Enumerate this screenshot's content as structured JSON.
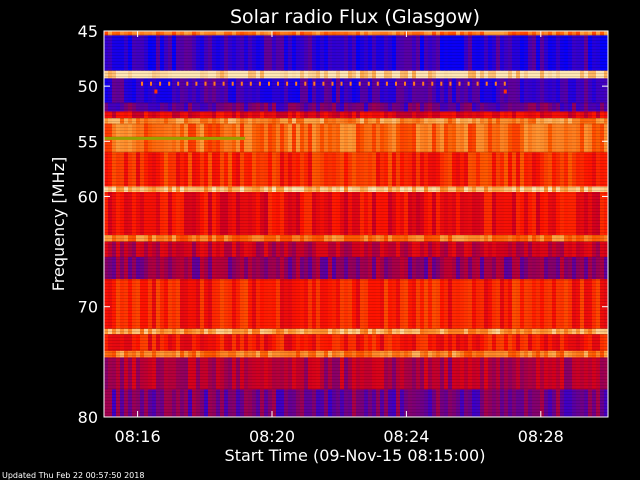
{
  "chart_data": {
    "type": "heatmap",
    "title": "Solar radio Flux (Glasgow)",
    "xlabel": "Start Time (09-Nov-15 08:15:00)",
    "ylabel": "Frequency [MHz]",
    "x_tick_labels": [
      "08:16",
      "08:20",
      "08:24",
      "08:28"
    ],
    "x_tick_minutes": [
      1,
      5,
      9,
      13
    ],
    "xlim_minutes": [
      0,
      15
    ],
    "y_tick_labels": [
      "45",
      "50",
      "55",
      "60",
      "70",
      "80"
    ],
    "y_tick_values": [
      45,
      50,
      55,
      60,
      70,
      80
    ],
    "ylim": [
      45,
      80
    ],
    "y_scale": "inverted",
    "bands": [
      {
        "f0": 45.0,
        "f1": 45.4,
        "level": 0.8
      },
      {
        "f0": 45.4,
        "f1": 48.6,
        "level": 0.22
      },
      {
        "f0": 48.6,
        "f1": 49.3,
        "level": 0.98
      },
      {
        "f0": 49.3,
        "f1": 51.5,
        "level": 0.24
      },
      {
        "f0": 51.5,
        "f1": 52.3,
        "level": 0.32
      },
      {
        "f0": 52.3,
        "f1": 52.9,
        "level": 0.55
      },
      {
        "f0": 52.9,
        "f1": 53.4,
        "level": 0.85
      },
      {
        "f0": 53.4,
        "f1": 56.0,
        "level": 0.78
      },
      {
        "f0": 56.0,
        "f1": 59.1,
        "level": 0.66
      },
      {
        "f0": 59.1,
        "f1": 59.6,
        "level": 0.92
      },
      {
        "f0": 59.6,
        "f1": 63.5,
        "level": 0.58
      },
      {
        "f0": 63.5,
        "f1": 64.1,
        "level": 0.8
      },
      {
        "f0": 64.1,
        "f1": 65.5,
        "level": 0.48
      },
      {
        "f0": 65.5,
        "f1": 67.5,
        "level": 0.38
      },
      {
        "f0": 67.5,
        "f1": 72.0,
        "level": 0.64
      },
      {
        "f0": 72.0,
        "f1": 72.5,
        "level": 0.88
      },
      {
        "f0": 72.5,
        "f1": 74.0,
        "level": 0.62
      },
      {
        "f0": 74.0,
        "f1": 74.6,
        "level": 0.82
      },
      {
        "f0": 74.6,
        "f1": 77.5,
        "level": 0.44
      },
      {
        "f0": 77.5,
        "f1": 80.0,
        "level": 0.34
      }
    ],
    "colormap": [
      "#00008c",
      "#0000ff",
      "#3c00c8",
      "#8c0064",
      "#d2001e",
      "#ff1400",
      "#ff5a00",
      "#ffa03c",
      "#ffe6b4"
    ],
    "grid": false
  },
  "footer": {
    "updated_text": "Updated Thu Feb 22 00:57:50 2018"
  }
}
